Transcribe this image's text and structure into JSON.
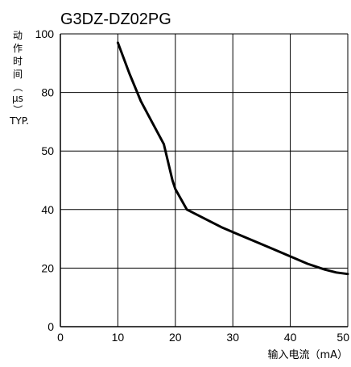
{
  "chart_data": {
    "type": "line",
    "title": "G3DZ-DZ02PG",
    "xlabel": "输入电流（mA）",
    "ylabel_lines": [
      "动",
      "作",
      "时",
      "间",
      "（",
      "μs",
      "）",
      "TYP."
    ],
    "x_ticks": [
      "0",
      "10",
      "20",
      "30",
      "40",
      "50"
    ],
    "y_ticks": [
      "0",
      "20",
      "40",
      "50",
      "80",
      "100"
    ],
    "x_range": [
      0,
      50
    ],
    "grid": true,
    "series": [
      {
        "x": [
          10,
          12,
          14,
          16,
          18,
          19.5,
          20,
          22,
          25,
          28,
          31,
          34,
          37,
          40,
          43,
          46,
          48,
          50
        ],
        "y": [
          97,
          86.5,
          75.5,
          64.5,
          53.5,
          45,
          43.5,
          40,
          37,
          34,
          31.5,
          29,
          26.5,
          24,
          21.5,
          19.5,
          18.5,
          18
        ]
      }
    ]
  }
}
